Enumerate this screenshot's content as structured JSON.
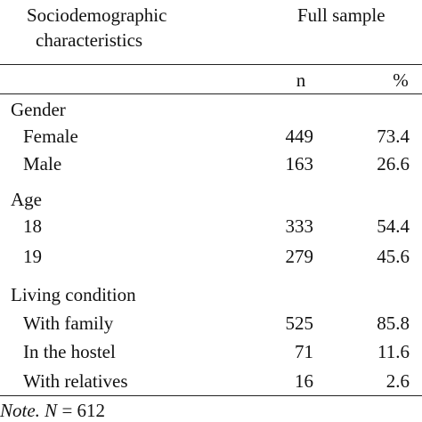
{
  "table": {
    "header": {
      "col1_line1": "Sociodemographic",
      "col1_line2": "characteristics",
      "group_label": "Full sample",
      "sub_n": "n",
      "sub_pct": "%"
    },
    "sections": [
      {
        "label": "Gender",
        "rows": [
          {
            "label": "Female",
            "n": "449",
            "pct": "73.4"
          },
          {
            "label": "Male",
            "n": "163",
            "pct": "26.6"
          }
        ]
      },
      {
        "label": "Age",
        "rows": [
          {
            "label": "18",
            "n": "333",
            "pct": "54.4"
          },
          {
            "label": "19",
            "n": "279",
            "pct": "45.6"
          }
        ]
      },
      {
        "label": "Living condition",
        "rows": [
          {
            "label": "With family",
            "n": "525",
            "pct": "85.8"
          },
          {
            "label": "In the hostel",
            "n": "71",
            "pct": "11.6"
          },
          {
            "label": "With relatives",
            "n": "16",
            "pct": "2.6"
          }
        ]
      }
    ],
    "note": {
      "prefix": "Note.",
      "var": "N",
      "rest": " = 612"
    }
  }
}
